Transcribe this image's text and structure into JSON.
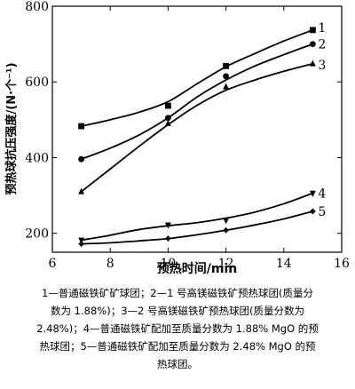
{
  "chart_data": {
    "type": "line",
    "xlabel": "预热时间/min",
    "ylabel": "预热球抗压强度/(N·个⁻¹)",
    "xlim": [
      6,
      16
    ],
    "ylim": [
      150,
      800
    ],
    "x_ticks": [
      "6",
      "8",
      "10",
      "12",
      "14",
      "16"
    ],
    "y_ticks": [
      "200",
      "400",
      "600",
      "800"
    ],
    "grid": false,
    "series": [
      {
        "name": "1",
        "marker": "square",
        "points": [
          [
            7,
            483
          ],
          [
            10,
            537
          ],
          [
            12,
            642
          ],
          [
            15,
            737
          ]
        ],
        "curve": [
          [
            7,
            483
          ],
          [
            8,
            500
          ],
          [
            9,
            520
          ],
          [
            10,
            548
          ],
          [
            11,
            595
          ],
          [
            12,
            640
          ],
          [
            13,
            675
          ],
          [
            14,
            708
          ],
          [
            15,
            737
          ]
        ]
      },
      {
        "name": "2",
        "marker": "circle",
        "points": [
          [
            7,
            396
          ],
          [
            10,
            505
          ],
          [
            12,
            615
          ],
          [
            15,
            700
          ]
        ],
        "curve": [
          [
            7,
            396
          ],
          [
            8,
            425
          ],
          [
            9,
            460
          ],
          [
            10,
            505
          ],
          [
            11,
            560
          ],
          [
            12,
            605
          ],
          [
            13,
            642
          ],
          [
            14,
            672
          ],
          [
            15,
            700
          ]
        ]
      },
      {
        "name": "3",
        "marker": "triangle-up",
        "points": [
          [
            7,
            310
          ],
          [
            10,
            490
          ],
          [
            12,
            587
          ],
          [
            15,
            648
          ]
        ],
        "curve": [
          [
            7,
            310
          ],
          [
            8,
            370
          ],
          [
            9,
            430
          ],
          [
            10,
            487
          ],
          [
            11,
            538
          ],
          [
            12,
            578
          ],
          [
            13,
            605
          ],
          [
            14,
            628
          ],
          [
            15,
            648
          ]
        ]
      },
      {
        "name": "4",
        "marker": "triangle-down",
        "points": [
          [
            7,
            182
          ],
          [
            10,
            222
          ],
          [
            12,
            234
          ],
          [
            15,
            306
          ]
        ],
        "curve": [
          [
            7,
            182
          ],
          [
            8,
            195
          ],
          [
            9,
            210
          ],
          [
            10,
            220
          ],
          [
            11,
            228
          ],
          [
            12,
            240
          ],
          [
            13,
            256
          ],
          [
            14,
            278
          ],
          [
            15,
            306
          ]
        ]
      },
      {
        "name": "5",
        "marker": "diamond",
        "points": [
          [
            7,
            172
          ],
          [
            10,
            186
          ],
          [
            12,
            208
          ],
          [
            15,
            258
          ]
        ],
        "curve": [
          [
            7,
            172
          ],
          [
            8,
            175
          ],
          [
            9,
            180
          ],
          [
            10,
            186
          ],
          [
            11,
            196
          ],
          [
            12,
            208
          ],
          [
            13,
            222
          ],
          [
            14,
            238
          ],
          [
            15,
            258
          ]
        ]
      }
    ]
  },
  "caption": {
    "lines": [
      "1—普通磁铁矿矿球团；2—1 号高镁磁铁矿预热球团(质量分",
      "数为 1.88%)；3—2 号高镁磁铁矿预热球团(质量分数为",
      "2.48%)；4—普通磁铁矿配加至质量分数为 1.88% MgO 的预",
      "热球团；5—普通磁铁矿配加至质量分数为 2.48% MgO 的预",
      "热球团。"
    ]
  }
}
